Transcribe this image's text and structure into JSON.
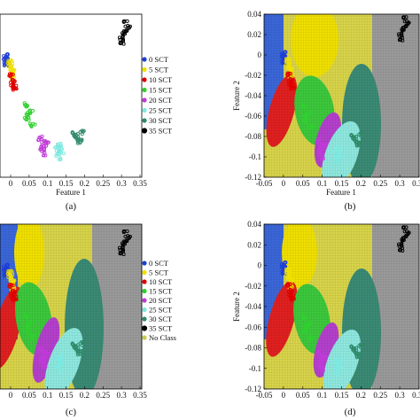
{
  "chart_data": [
    {
      "panel": "(a)",
      "type": "scatter",
      "xlabel": "Feature 1",
      "ylabel": "",
      "xticks": [
        "0",
        "0.05",
        "0.1",
        "0.15",
        "0.2",
        "0.25",
        "0.3",
        "0.35"
      ],
      "yticks": [],
      "xlim": [
        -0.015,
        0.355
      ],
      "ylim": [
        -0.125,
        0.045
      ],
      "legend": "right",
      "series": [
        {
          "name": "0 SCT",
          "color": "#1f3fd6",
          "points": [
            [
              0.0,
              0.0
            ],
            [
              0.003,
              -0.003
            ],
            [
              0.001,
              -0.006
            ],
            [
              0.005,
              0.002
            ],
            [
              0.004,
              -0.008
            ]
          ]
        },
        {
          "name": "5 SCT",
          "color": "#f0e000",
          "points": [
            [
              0.01,
              -0.005
            ],
            [
              0.015,
              -0.012
            ],
            [
              0.02,
              -0.02
            ],
            [
              0.012,
              -0.008
            ],
            [
              0.018,
              -0.015
            ]
          ]
        },
        {
          "name": "10 SCT",
          "color": "#e00000",
          "points": [
            [
              0.015,
              -0.02
            ],
            [
              0.02,
              -0.028
            ],
            [
              0.025,
              -0.032
            ],
            [
              0.018,
              -0.024
            ],
            [
              0.022,
              -0.03
            ]
          ]
        },
        {
          "name": "15 SCT",
          "color": "#2fd02f",
          "points": [
            [
              0.05,
              -0.05
            ],
            [
              0.06,
              -0.06
            ],
            [
              0.07,
              -0.07
            ],
            [
              0.055,
              -0.065
            ],
            [
              0.065,
              -0.058
            ]
          ]
        },
        {
          "name": "20 SCT",
          "color": "#c03ad8",
          "points": [
            [
              0.09,
              -0.085
            ],
            [
              0.1,
              -0.09
            ],
            [
              0.095,
              -0.095
            ],
            [
              0.105,
              -0.088
            ],
            [
              0.1,
              -0.1
            ]
          ]
        },
        {
          "name": "25 SCT",
          "color": "#7ee8e0",
          "points": [
            [
              0.135,
              -0.095
            ],
            [
              0.14,
              -0.1
            ],
            [
              0.145,
              -0.098
            ],
            [
              0.138,
              -0.104
            ],
            [
              0.142,
              -0.092
            ]
          ]
        },
        {
          "name": "30 SCT",
          "color": "#2f8a6a",
          "points": [
            [
              0.18,
              -0.08
            ],
            [
              0.19,
              -0.085
            ],
            [
              0.2,
              -0.078
            ],
            [
              0.185,
              -0.082
            ],
            [
              0.195,
              -0.088
            ]
          ]
        },
        {
          "name": "35 SCT",
          "color": "#000000",
          "points": [
            [
              0.3,
              0.02
            ],
            [
              0.31,
              0.025
            ],
            [
              0.32,
              0.03
            ],
            [
              0.315,
              0.035
            ],
            [
              0.305,
              0.015
            ]
          ]
        }
      ]
    },
    {
      "panel": "(b)",
      "type": "scatter",
      "xlabel": "Feature 1",
      "ylabel": "Feature 2",
      "xticks": [
        "-0.05",
        "0",
        "0.05",
        "0.1",
        "0.15",
        "0.2",
        "0.25",
        "0.3",
        "0.35"
      ],
      "yticks": [
        "0.04",
        "0.02",
        "0",
        "-0.02",
        "-0.04",
        "-0.06",
        "-0.08",
        "-0.1",
        "-0.12"
      ],
      "xlim": [
        -0.05,
        0.35
      ],
      "ylim": [
        -0.12,
        0.04
      ],
      "regions": "classification decision regions"
    },
    {
      "panel": "(c)",
      "type": "scatter",
      "xlabel": "Feature 1",
      "ylabel": "",
      "xticks": [
        "0",
        "0.05",
        "0.1",
        "0.15",
        "0.2",
        "0.25",
        "0.3",
        "0.35"
      ],
      "yticks": [],
      "legend": "right",
      "series_names": [
        "0 SCT",
        "5 SCT",
        "10 SCT",
        "15 SCT",
        "20 SCT",
        "25 SCT",
        "30 SCT",
        "35 SCT",
        "No Class"
      ]
    },
    {
      "panel": "(d)",
      "type": "scatter",
      "xlabel": "Feature 1",
      "ylabel": "Feature 2",
      "xticks": [
        "-0.05",
        "0",
        "0.05",
        "0.1",
        "0.15",
        "0.2",
        "0.25",
        "0.3",
        "0.35"
      ],
      "yticks": [
        "0.04",
        "0.02",
        "0",
        "-0.02",
        "-0.04",
        "-0.06",
        "-0.08",
        "-0.1",
        "-0.12"
      ],
      "xlim": [
        -0.05,
        0.35
      ],
      "ylim": [
        -0.12,
        0.04
      ]
    }
  ],
  "legend_a": [
    "0 SCT",
    "5 SCT",
    "10 SCT",
    "15 SCT",
    "20 SCT",
    "25 SCT",
    "30 SCT",
    "35 SCT"
  ],
  "legend_c": [
    "0 SCT",
    "5 SCT",
    "10 SCT",
    "15 SCT",
    "20 SCT",
    "25 SCT",
    "30 SCT",
    "35 SCT",
    "No Class"
  ],
  "legend_colors": [
    "#1f3fd6",
    "#f0e000",
    "#e00000",
    "#2fd02f",
    "#c03ad8",
    "#7ee8e0",
    "#2f8a6a",
    "#000000",
    "#c9c94a"
  ],
  "panel_labels": {
    "a": "(a)",
    "b": "(b)",
    "c": "(c)",
    "d": "(d)"
  },
  "axis_text": {
    "feature1": "Feature 1",
    "feature2": "Feature 2"
  }
}
